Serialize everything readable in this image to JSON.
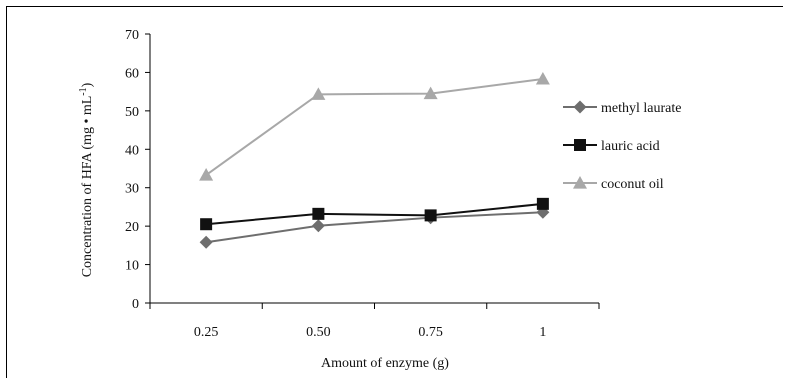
{
  "chart_data": {
    "type": "line",
    "categories": [
      "0.25",
      "0.50",
      "0.75",
      "1"
    ],
    "xlabel": "Amount of enzyme (g)",
    "ylabel": "Concentration of HFA (mg • mL",
    "ylabel_sup": "-1",
    "ylabel_close": ")",
    "ylim": [
      0,
      70
    ],
    "yticks": [
      0,
      10,
      20,
      30,
      40,
      50,
      60,
      70
    ],
    "grid": false,
    "legend_position": "right",
    "series": [
      {
        "name": "methyl laurate",
        "values": [
          15.8,
          20.1,
          22.2,
          23.6
        ],
        "color": "#6e6e6e",
        "marker": "diamond"
      },
      {
        "name": "lauric acid",
        "values": [
          20.5,
          23.2,
          22.8,
          25.8
        ],
        "color": "#111111",
        "marker": "square"
      },
      {
        "name": "coconut oil",
        "values": [
          33.3,
          54.3,
          54.5,
          58.3
        ],
        "color": "#a8a8a8",
        "marker": "triangle"
      }
    ]
  }
}
